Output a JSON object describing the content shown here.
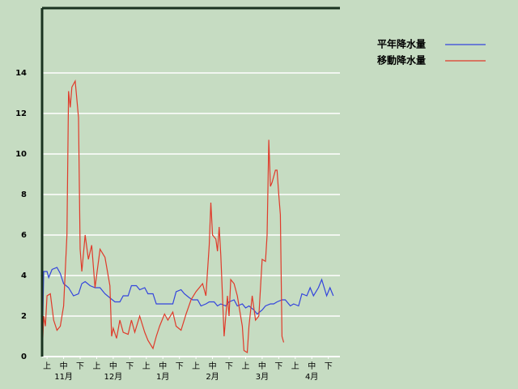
{
  "chart_data": {
    "type": "line",
    "xlim": [
      0,
      180
    ],
    "ylim": [
      0,
      17.2
    ],
    "yticks": [
      0,
      2,
      4,
      6,
      8,
      10,
      12,
      14
    ],
    "xticks": [
      {
        "value": 3,
        "label": "上"
      },
      {
        "value": 13,
        "label": "中"
      },
      {
        "value": 23,
        "label": "下"
      },
      {
        "value": 33,
        "label": "上"
      },
      {
        "value": 43,
        "label": "中"
      },
      {
        "value": 53,
        "label": "下"
      },
      {
        "value": 63,
        "label": "上"
      },
      {
        "value": 73,
        "label": "中"
      },
      {
        "value": 83,
        "label": "下"
      },
      {
        "value": 93,
        "label": "上"
      },
      {
        "value": 103,
        "label": "中"
      },
      {
        "value": 113,
        "label": "下"
      },
      {
        "value": 123,
        "label": "上"
      },
      {
        "value": 133,
        "label": "中"
      },
      {
        "value": 143,
        "label": "下"
      },
      {
        "value": 153,
        "label": "上"
      },
      {
        "value": 163,
        "label": "中"
      },
      {
        "value": 173,
        "label": "下"
      }
    ],
    "months": [
      "11月",
      "12月",
      "1月",
      "2月",
      "3月",
      "4月"
    ],
    "grid": true,
    "legend": "top-right",
    "series": [
      {
        "name": "平年降水量",
        "color": "#3344dd",
        "x": [
          0,
          1,
          3,
          4,
          6,
          9,
          11,
          13,
          16,
          19,
          22,
          24,
          26,
          29,
          32,
          35,
          38,
          41,
          44,
          47,
          49,
          52,
          54,
          57,
          59,
          62,
          64,
          67,
          69,
          72,
          74,
          76,
          79,
          81,
          84,
          86,
          89,
          91,
          94,
          96,
          99,
          101,
          104,
          106,
          108,
          111,
          113,
          116,
          118,
          121,
          123,
          125,
          128,
          130,
          133,
          135,
          138,
          140,
          142,
          145,
          147,
          150,
          152,
          155,
          157,
          160,
          162,
          164,
          167,
          169,
          172,
          174,
          176
        ],
        "values": [
          0,
          4.2,
          4.2,
          3.9,
          4.3,
          4.4,
          4.1,
          3.6,
          3.4,
          3.0,
          3.1,
          3.6,
          3.7,
          3.5,
          3.4,
          3.4,
          3.1,
          2.9,
          2.7,
          2.7,
          3.0,
          3.0,
          3.5,
          3.5,
          3.3,
          3.4,
          3.1,
          3.1,
          2.6,
          2.6,
          2.6,
          2.6,
          2.6,
          3.2,
          3.3,
          3.1,
          2.9,
          2.8,
          2.8,
          2.5,
          2.6,
          2.7,
          2.7,
          2.5,
          2.6,
          2.5,
          2.7,
          2.8,
          2.5,
          2.6,
          2.4,
          2.5,
          2.3,
          2.1,
          2.3,
          2.5,
          2.6,
          2.6,
          2.7,
          2.8,
          2.8,
          2.5,
          2.6,
          2.5,
          3.1,
          3.0,
          3.4,
          3.0,
          3.4,
          3.8,
          3.0,
          3.4,
          3.0
        ]
      },
      {
        "name": "移動降水量",
        "color": "#e03a2a",
        "x": [
          0,
          1,
          2,
          3,
          5,
          7,
          9,
          11,
          13,
          15,
          16,
          17,
          18,
          20,
          22,
          23,
          24,
          26,
          28,
          30,
          32,
          35,
          38,
          41,
          42,
          43,
          45,
          47,
          49,
          52,
          54,
          56,
          59,
          62,
          64,
          67,
          69,
          71,
          74,
          76,
          79,
          81,
          84,
          87,
          90,
          93,
          97,
          99,
          101,
          102,
          103,
          105,
          106,
          107,
          108,
          110,
          112,
          113,
          114,
          116,
          118,
          120,
          121,
          122,
          124,
          125,
          127,
          129,
          131,
          133,
          135,
          136,
          137,
          138,
          139,
          141,
          142,
          143,
          144,
          145,
          146
        ],
        "values": [
          0,
          2,
          1.5,
          3,
          3.1,
          1.8,
          1.3,
          1.5,
          2.5,
          6,
          13.1,
          12.3,
          13.3,
          13.6,
          11.8,
          5.3,
          4.2,
          6,
          4.8,
          5.5,
          3.4,
          5.3,
          4.9,
          3.5,
          1.0,
          1.4,
          0.9,
          1.8,
          1.2,
          1.1,
          1.8,
          1.2,
          2.0,
          1.2,
          0.8,
          0.4,
          1.0,
          1.5,
          2.1,
          1.8,
          2.2,
          1.5,
          1.3,
          2.1,
          2.8,
          3.2,
          3.6,
          3.0,
          5.5,
          7.6,
          6.0,
          5.8,
          5.2,
          6.4,
          5.0,
          1.0,
          3.0,
          2.0,
          3.8,
          3.6,
          3.0,
          2.0,
          1.5,
          0.3,
          0.2,
          1.5,
          3.0,
          1.8,
          2.0,
          4.8,
          4.7,
          6.0,
          10.7,
          8.4,
          8.6,
          9.2,
          9.2,
          8.0,
          7.0,
          1.0,
          0.7
        ]
      }
    ]
  }
}
